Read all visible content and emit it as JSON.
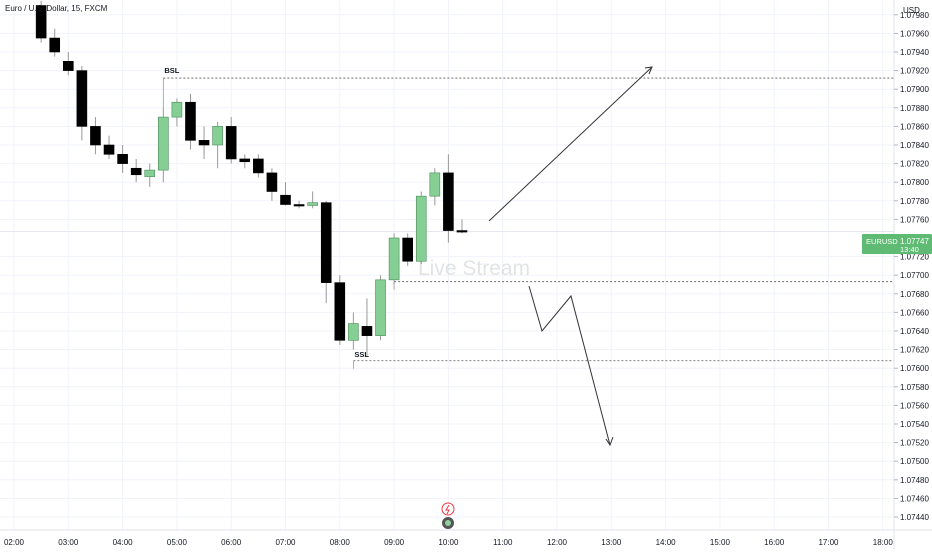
{
  "header": {
    "symbol_title": "Euro / U.S. Dollar, 15, FXCM"
  },
  "price_axis": {
    "currency": "USD",
    "labels": [
      "1.07980",
      "1.07960",
      "1.07940",
      "1.07920",
      "1.07900",
      "1.07880",
      "1.07860",
      "1.07840",
      "1.07820",
      "1.07800",
      "1.07780",
      "1.07760",
      "1.07720",
      "1.07700",
      "1.07680",
      "1.07660",
      "1.07640",
      "1.07620",
      "1.07600",
      "1.07580",
      "1.07560",
      "1.07540",
      "1.07520",
      "1.07500",
      "1.07480",
      "1.07460",
      "1.07440"
    ],
    "last_price_tag": {
      "symbol": "EURUSD",
      "price": "1.07747",
      "countdown": "13:40",
      "color": "#5fba73"
    }
  },
  "time_axis": {
    "labels": [
      "02:00",
      "03:00",
      "04:00",
      "05:00",
      "06:00",
      "07:00",
      "08:00",
      "09:00",
      "10:00",
      "11:00",
      "12:00",
      "13:00",
      "14:00",
      "15:00",
      "16:00",
      "17:00",
      "18:00"
    ]
  },
  "watermark": "Live Stream",
  "annotations": {
    "bsl_label": "BSL",
    "ssl_label": "SSL"
  },
  "colors": {
    "bull": "#86cf94",
    "bear": "#000000",
    "grid": "#f0f3fa",
    "level_line": "#555555"
  },
  "chart_data": {
    "type": "candlestick",
    "symbol": "EURUSD",
    "interval": "15",
    "ylim": [
      1.07435,
      1.07995
    ],
    "candles": [
      {
        "t": "02:30",
        "o": 1.0799,
        "h": 1.07995,
        "l": 1.0795,
        "c": 1.07955
      },
      {
        "t": "02:45",
        "o": 1.07955,
        "h": 1.07965,
        "l": 1.07935,
        "c": 1.0794
      },
      {
        "t": "03:00",
        "o": 1.0793,
        "h": 1.0794,
        "l": 1.07915,
        "c": 1.0792
      },
      {
        "t": "03:15",
        "o": 1.0792,
        "h": 1.07925,
        "l": 1.07845,
        "c": 1.0786
      },
      {
        "t": "03:30",
        "o": 1.0786,
        "h": 1.0787,
        "l": 1.0783,
        "c": 1.0784
      },
      {
        "t": "03:45",
        "o": 1.0784,
        "h": 1.0785,
        "l": 1.07825,
        "c": 1.0783
      },
      {
        "t": "04:00",
        "o": 1.0783,
        "h": 1.0784,
        "l": 1.0781,
        "c": 1.0782
      },
      {
        "t": "04:15",
        "o": 1.07815,
        "h": 1.07825,
        "l": 1.078,
        "c": 1.07808
      },
      {
        "t": "04:30",
        "o": 1.07806,
        "h": 1.0782,
        "l": 1.07795,
        "c": 1.07813
      },
      {
        "t": "04:45",
        "o": 1.07813,
        "h": 1.0788,
        "l": 1.078,
        "c": 1.0787
      },
      {
        "t": "05:00",
        "o": 1.0787,
        "h": 1.0789,
        "l": 1.0786,
        "c": 1.07886
      },
      {
        "t": "05:15",
        "o": 1.07886,
        "h": 1.07895,
        "l": 1.07835,
        "c": 1.07845
      },
      {
        "t": "05:30",
        "o": 1.07845,
        "h": 1.0786,
        "l": 1.07825,
        "c": 1.0784
      },
      {
        "t": "05:45",
        "o": 1.0784,
        "h": 1.07865,
        "l": 1.07815,
        "c": 1.0786
      },
      {
        "t": "06:00",
        "o": 1.0786,
        "h": 1.0787,
        "l": 1.0782,
        "c": 1.07825
      },
      {
        "t": "06:15",
        "o": 1.07825,
        "h": 1.0783,
        "l": 1.07815,
        "c": 1.07822
      },
      {
        "t": "06:30",
        "o": 1.07825,
        "h": 1.0783,
        "l": 1.07805,
        "c": 1.0781
      },
      {
        "t": "06:45",
        "o": 1.0781,
        "h": 1.07815,
        "l": 1.0778,
        "c": 1.0779
      },
      {
        "t": "07:00",
        "o": 1.07786,
        "h": 1.078,
        "l": 1.07775,
        "c": 1.07776
      },
      {
        "t": "07:15",
        "o": 1.07776,
        "h": 1.0778,
        "l": 1.07772,
        "c": 1.07775
      },
      {
        "t": "07:30",
        "o": 1.07775,
        "h": 1.0779,
        "l": 1.07772,
        "c": 1.07778
      },
      {
        "t": "07:45",
        "o": 1.07778,
        "h": 1.0778,
        "l": 1.0767,
        "c": 1.07692
      },
      {
        "t": "08:00",
        "o": 1.07692,
        "h": 1.077,
        "l": 1.07625,
        "c": 1.0763
      },
      {
        "t": "08:15",
        "o": 1.0763,
        "h": 1.0766,
        "l": 1.0762,
        "c": 1.07648
      },
      {
        "t": "08:30",
        "o": 1.07645,
        "h": 1.07675,
        "l": 1.07613,
        "c": 1.07635
      },
      {
        "t": "08:45",
        "o": 1.07635,
        "h": 1.077,
        "l": 1.0763,
        "c": 1.07695
      },
      {
        "t": "09:00",
        "o": 1.07695,
        "h": 1.07745,
        "l": 1.0769,
        "c": 1.0774
      },
      {
        "t": "09:15",
        "o": 1.0774,
        "h": 1.07745,
        "l": 1.0771,
        "c": 1.07715
      },
      {
        "t": "09:30",
        "o": 1.07715,
        "h": 1.0779,
        "l": 1.07712,
        "c": 1.07785
      },
      {
        "t": "09:45",
        "o": 1.07785,
        "h": 1.07815,
        "l": 1.07775,
        "c": 1.0781
      },
      {
        "t": "10:00",
        "o": 1.0781,
        "h": 1.0783,
        "l": 1.07735,
        "c": 1.07748
      },
      {
        "t": "10:15",
        "o": 1.07748,
        "h": 1.0776,
        "l": 1.07745,
        "c": 1.07747
      }
    ],
    "levels": [
      {
        "name": "BSL",
        "price": 1.07912,
        "from": "04:45"
      },
      {
        "name": "SSL",
        "price": 1.07608,
        "from": "08:15"
      },
      {
        "name": "",
        "price": 1.07693,
        "from": "09:00"
      }
    ],
    "last_price": 1.07747
  }
}
